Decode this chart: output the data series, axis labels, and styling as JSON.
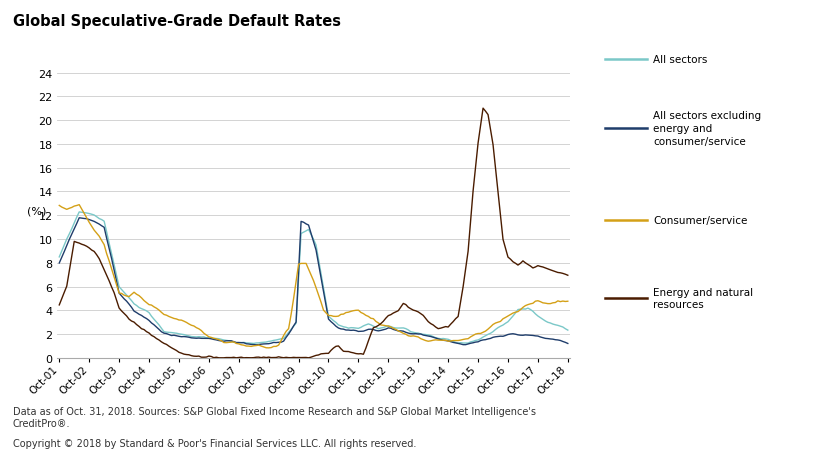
{
  "title": "Global Speculative-Grade Default Rates",
  "ylabel": "(%)",
  "footnote1": "Data as of Oct. 31, 2018. Sources: S&P Global Fixed Income Research and S&P Global Market Intelligence's\nCreditPro®.",
  "footnote2": "Copyright © 2018 by Standard & Poor's Financial Services LLC. All rights reserved.",
  "x_tick_positions": [
    0,
    12,
    24,
    36,
    48,
    60,
    72,
    84,
    96,
    108,
    120,
    132,
    144,
    156,
    168,
    180,
    192,
    204
  ],
  "x_labels": [
    "Oct-01",
    "Oct-02",
    "Oct-03",
    "Oct-04",
    "Oct-05",
    "Oct-06",
    "Oct-07",
    "Oct-08",
    "Oct-09",
    "Oct-10",
    "Oct-11",
    "Oct-12",
    "Oct-13",
    "Oct-14",
    "Oct-15",
    "Oct-16",
    "Oct-17",
    "Oct-18"
  ],
  "ylim": [
    0,
    24
  ],
  "yticks": [
    0,
    2,
    4,
    6,
    8,
    10,
    12,
    14,
    16,
    18,
    20,
    22,
    24
  ],
  "colors": {
    "all_sectors": "#7BC8C8",
    "all_ex_energy": "#1F3D6B",
    "consumer": "#D4A017",
    "energy": "#4A1C00"
  },
  "legend_labels": {
    "all_sectors": "All sectors",
    "all_ex_energy": "All sectors excluding\nenergy and\nconsumer/service",
    "consumer": "Consumer/service",
    "energy": "Energy and natural\nresources"
  }
}
